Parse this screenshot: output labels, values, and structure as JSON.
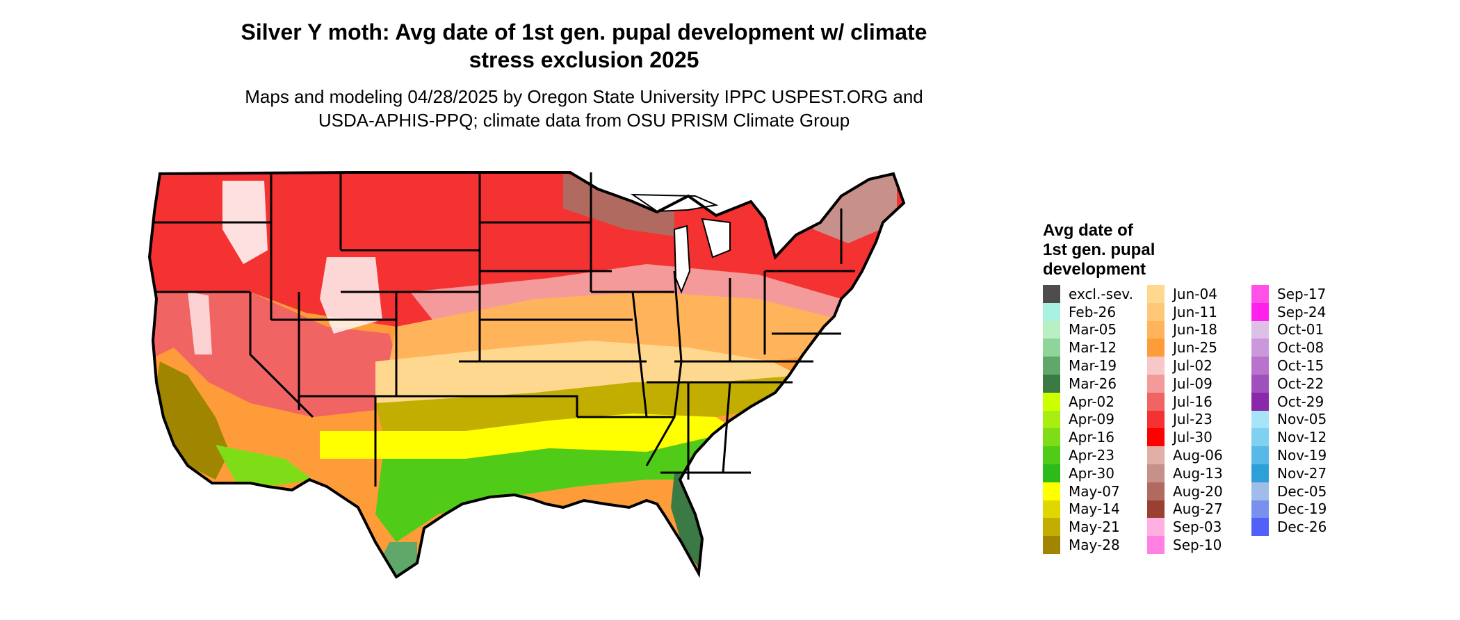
{
  "title_line1": "Silver Y moth: Avg date of 1st gen. pupal development w/ climate",
  "title_line2": "stress exclusion 2025",
  "subtitle_line1": "Maps and modeling 04/28/2025 by Oregon State University IPPC USPEST.ORG and",
  "subtitle_line2": "USDA-APHIS-PPQ; climate data from OSU PRISM Climate Group",
  "legend": {
    "title_line1": "Avg date of",
    "title_line2": "1st gen. pupal",
    "title_line3": "development",
    "items": [
      {
        "label": "excl.-sev.",
        "color": "#4d4d4d"
      },
      {
        "label": "Feb-26",
        "color": "#a7f2e0"
      },
      {
        "label": "Mar-05",
        "color": "#b8f0c4"
      },
      {
        "label": "Mar-12",
        "color": "#8fd49a"
      },
      {
        "label": "Mar-19",
        "color": "#5fa86a"
      },
      {
        "label": "Mar-26",
        "color": "#3b7a44"
      },
      {
        "label": "Apr-02",
        "color": "#ccff00"
      },
      {
        "label": "Apr-09",
        "color": "#a8ee10"
      },
      {
        "label": "Apr-16",
        "color": "#7fdd18"
      },
      {
        "label": "Apr-23",
        "color": "#50cc18"
      },
      {
        "label": "Apr-30",
        "color": "#2cbb18"
      },
      {
        "label": "May-07",
        "color": "#ffff00"
      },
      {
        "label": "May-14",
        "color": "#e0d600"
      },
      {
        "label": "May-21",
        "color": "#c2ae00"
      },
      {
        "label": "May-28",
        "color": "#a08600"
      },
      {
        "label": "Jun-04",
        "color": "#ffd890"
      },
      {
        "label": "Jun-11",
        "color": "#ffc878"
      },
      {
        "label": "Jun-18",
        "color": "#ffb45c"
      },
      {
        "label": "Jun-25",
        "color": "#ff9c3a"
      },
      {
        "label": "Jul-02",
        "color": "#f6c8c8"
      },
      {
        "label": "Jul-09",
        "color": "#f49a9a"
      },
      {
        "label": "Jul-16",
        "color": "#f06464"
      },
      {
        "label": "Jul-23",
        "color": "#f53232"
      },
      {
        "label": "Jul-30",
        "color": "#ff0000"
      },
      {
        "label": "Aug-06",
        "color": "#e0b0a8"
      },
      {
        "label": "Aug-13",
        "color": "#c8908a"
      },
      {
        "label": "Aug-20",
        "color": "#b06a60"
      },
      {
        "label": "Aug-27",
        "color": "#9a4030"
      },
      {
        "label": "Sep-03",
        "color": "#ffb0e0"
      },
      {
        "label": "Sep-10",
        "color": "#ff80e0"
      },
      {
        "label": "Sep-17",
        "color": "#ff50e8"
      },
      {
        "label": "Sep-24",
        "color": "#ff20ee"
      },
      {
        "label": "Oct-01",
        "color": "#dcc0e8"
      },
      {
        "label": "Oct-08",
        "color": "#cc98dc"
      },
      {
        "label": "Oct-15",
        "color": "#b874cc"
      },
      {
        "label": "Oct-22",
        "color": "#a050bc"
      },
      {
        "label": "Oct-29",
        "color": "#8a28aa"
      },
      {
        "label": "Nov-05",
        "color": "#a8e4f8"
      },
      {
        "label": "Nov-12",
        "color": "#80d0f0"
      },
      {
        "label": "Nov-19",
        "color": "#58b8e8"
      },
      {
        "label": "Nov-27",
        "color": "#2ea0d8"
      },
      {
        "label": "Dec-05",
        "color": "#a0bce8"
      },
      {
        "label": "Dec-19",
        "color": "#7890ee"
      },
      {
        "label": "Dec-26",
        "color": "#5060f8"
      }
    ]
  }
}
